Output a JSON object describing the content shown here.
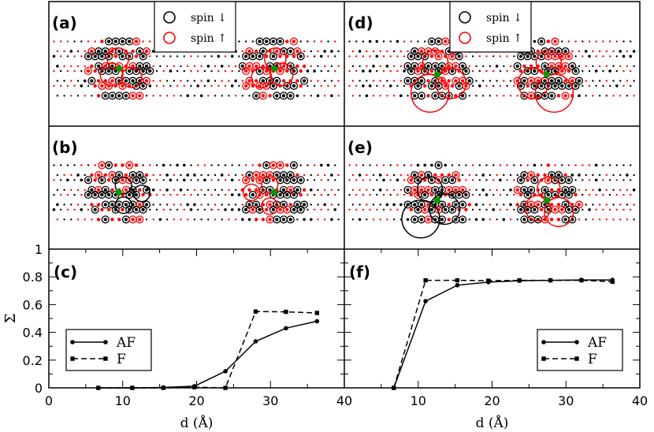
{
  "panels": {
    "a": {
      "label": "(a)",
      "config": "AF",
      "green": [
        [
          -8.5,
          0
        ],
        [
          8.5,
          0
        ]
      ],
      "circles": [
        {
          "c": "red",
          "x": -8.6,
          "y": -1.0,
          "r": 1.7
        },
        {
          "c": "red",
          "x": -9.3,
          "y": 0.6,
          "r": 1.8
        },
        {
          "c": "red",
          "x": -7.1,
          "y": 0.9,
          "r": 1.6
        },
        {
          "c": "red",
          "x": 8.6,
          "y": -1.0,
          "r": 1.7
        },
        {
          "c": "red",
          "x": 9.3,
          "y": 0.6,
          "r": 1.8
        },
        {
          "c": "red",
          "x": 7.1,
          "y": 0.9,
          "r": 1.6
        }
      ]
    },
    "b": {
      "label": "(b)",
      "config": "F",
      "green": [
        [
          -8.5,
          0
        ],
        [
          8.5,
          0
        ]
      ],
      "circles": [
        {
          "c": "black",
          "x": -8.0,
          "y": -0.7,
          "r": 1.3
        },
        {
          "c": "black",
          "x": -6.0,
          "y": 0.1,
          "r": 1.3
        },
        {
          "c": "black",
          "x": -8.0,
          "y": 1.3,
          "r": 1.3
        },
        {
          "c": "red",
          "x": 8.0,
          "y": -0.8,
          "r": 1.3
        },
        {
          "c": "red",
          "x": 6.0,
          "y": 0.0,
          "r": 1.3
        },
        {
          "c": "red",
          "x": 8.0,
          "y": 1.4,
          "r": 1.3
        }
      ]
    },
    "d": {
      "label": "(d)",
      "config": "AF",
      "green": [
        [
          -6.0,
          0.6
        ],
        [
          6.0,
          0.6
        ]
      ],
      "circles": [
        {
          "c": "red",
          "x": -6.8,
          "y": 2.5,
          "r": 3.0
        },
        {
          "c": "red",
          "x": -4.5,
          "y": 1.5,
          "r": 2.4
        },
        {
          "c": "red",
          "x": -6.2,
          "y": -0.6,
          "r": 2.0
        },
        {
          "c": "red",
          "x": 6.8,
          "y": 2.5,
          "r": 3.0
        },
        {
          "c": "red",
          "x": 4.5,
          "y": 1.5,
          "r": 2.4
        },
        {
          "c": "red",
          "x": 6.2,
          "y": -0.6,
          "r": 2.0
        }
      ]
    },
    "e": {
      "label": "(e)",
      "config": "F",
      "green": [
        [
          -6.0,
          0.8
        ],
        [
          6.0,
          0.8
        ]
      ],
      "circles": [
        {
          "c": "black",
          "x": -7.8,
          "y": 2.7,
          "r": 3.0
        },
        {
          "c": "black",
          "x": -5.2,
          "y": 1.7,
          "r": 2.4
        },
        {
          "c": "black",
          "x": -6.8,
          "y": -0.3,
          "r": 2.0
        },
        {
          "c": "red",
          "x": 7.3,
          "y": 2.0,
          "r": 2.3
        },
        {
          "c": "red",
          "x": 5.0,
          "y": 1.6,
          "r": 2.0
        },
        {
          "c": "red",
          "x": 6.2,
          "y": -0.4,
          "r": 1.8
        }
      ]
    }
  },
  "legend_spin": [
    {
      "label": "spin",
      "arrow": "↓",
      "color": "#000000"
    },
    {
      "label": "spin",
      "arrow": "↑",
      "color": "#ff0000"
    }
  ],
  "lattice": {
    "rows": [
      -2.25,
      -0.75,
      0.75,
      2.25
    ],
    "x_range": [
      -15.6,
      15.6
    ],
    "spacing": 0.75
  },
  "chart_data": [
    {
      "panel": "(c)",
      "type": "line",
      "xlabel": "d (Å)",
      "ylabel": "Σ",
      "xlim": [
        0,
        40
      ],
      "ylim": [
        0,
        1
      ],
      "xticks": [
        0,
        10,
        20,
        30,
        40
      ],
      "yticks": [
        0,
        0.2,
        0.4,
        0.6,
        0.8,
        1
      ],
      "legend": "bottom-left",
      "series": [
        {
          "name": "AF",
          "style": "solid",
          "marker": "circle",
          "x": [
            6.7,
            11.3,
            15.5,
            19.7,
            23.9,
            28,
            32.1,
            36.3
          ],
          "y": [
            0,
            0,
            0.003,
            0.012,
            0.12,
            0.335,
            0.43,
            0.48
          ]
        },
        {
          "name": "F",
          "style": "dashed",
          "marker": "square",
          "x": [
            6.7,
            11.3,
            15.5,
            19.7,
            23.9,
            28,
            32.1,
            36.3
          ],
          "y": [
            0,
            0,
            0,
            0.005,
            0,
            0.55,
            0.548,
            0.54
          ]
        }
      ]
    },
    {
      "panel": "(f)",
      "type": "line",
      "xlabel": "d (Å)",
      "xlim": [
        0,
        40
      ],
      "ylim": [
        0,
        1
      ],
      "xticks": [
        0,
        10,
        20,
        30,
        40
      ],
      "legend": "bottom-right",
      "series": [
        {
          "name": "AF",
          "style": "solid",
          "marker": "circle",
          "x": [
            6.7,
            11,
            15.3,
            19.5,
            23.7,
            27.9,
            32.1,
            36.3
          ],
          "y": [
            0,
            0.625,
            0.74,
            0.762,
            0.772,
            0.775,
            0.778,
            0.778
          ]
        },
        {
          "name": "F",
          "style": "dashed",
          "marker": "square",
          "x": [
            6.7,
            11,
            15.3,
            19.5,
            23.7,
            27.9,
            32.1,
            36.3
          ],
          "y": [
            0,
            0.775,
            0.775,
            0.772,
            0.775,
            0.775,
            0.775,
            0.765
          ]
        }
      ]
    }
  ]
}
